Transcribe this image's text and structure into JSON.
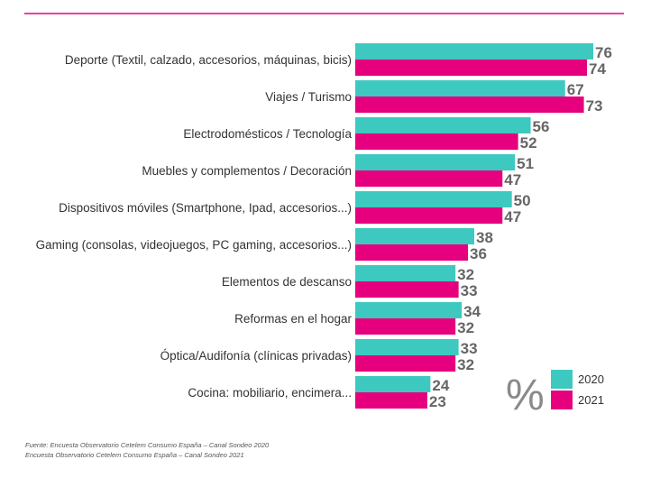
{
  "colors": {
    "series_2020": "#3ec9c0",
    "series_2021": "#e6007e",
    "top_rule": "#e6007e",
    "value_text": "#666666"
  },
  "unit_symbol": "%",
  "source": {
    "line1": "Fuente: Encuesta Observatorio Cetelem Consumo España – Canal Sondeo 2020",
    "line2": "Encuesta Observatorio Cetelem Consumo España – Canal Sondeo 2021"
  },
  "chart_data": {
    "type": "bar",
    "orientation": "horizontal",
    "title": "",
    "xlabel": "",
    "ylabel": "",
    "xlim": [
      0,
      76
    ],
    "grid": false,
    "legend_position": "bottom-right",
    "categories": [
      "Deporte (Textil, calzado, accesorios, máquinas, bicis)",
      "Viajes / Turismo",
      "Electrodomésticos / Tecnología",
      "Muebles y complementos / Decoración",
      "Dispositivos móviles (Smartphone, Ipad, accesorios...)",
      "Gaming (consolas, videojuegos, PC gaming, accesorios...)",
      "Elementos de descanso",
      "Reformas en el hogar",
      "Óptica/Audifonía (clínicas privadas)",
      "Cocina: mobiliario, encimera..."
    ],
    "series": [
      {
        "name": "2020",
        "values": [
          76,
          67,
          56,
          51,
          50,
          38,
          32,
          34,
          33,
          24
        ]
      },
      {
        "name": "2021",
        "values": [
          74,
          73,
          52,
          47,
          47,
          36,
          33,
          32,
          32,
          23
        ]
      }
    ]
  }
}
